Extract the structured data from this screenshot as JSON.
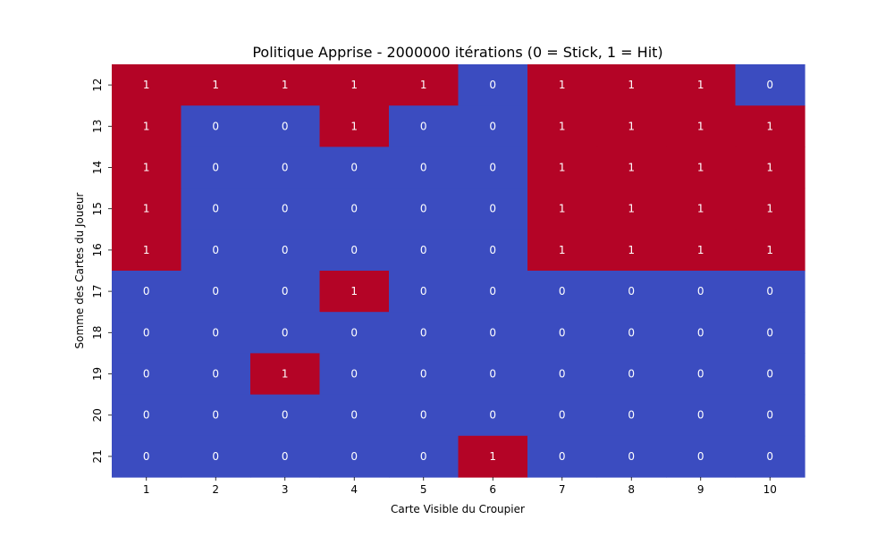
{
  "chart_data": {
    "type": "heatmap",
    "title": "Politique Apprise - 2000000 itérations (0 = Stick, 1 = Hit)",
    "xlabel": "Carte Visible du Croupier",
    "ylabel": "Somme des Cartes du Joueur",
    "x": [
      "1",
      "2",
      "3",
      "4",
      "5",
      "6",
      "7",
      "8",
      "9",
      "10"
    ],
    "y": [
      "12",
      "13",
      "14",
      "15",
      "16",
      "17",
      "18",
      "19",
      "20",
      "21"
    ],
    "values": [
      [
        1,
        1,
        1,
        1,
        1,
        0,
        1,
        1,
        1,
        0
      ],
      [
        1,
        0,
        0,
        1,
        0,
        0,
        1,
        1,
        1,
        1
      ],
      [
        1,
        0,
        0,
        0,
        0,
        0,
        1,
        1,
        1,
        1
      ],
      [
        1,
        0,
        0,
        0,
        0,
        0,
        1,
        1,
        1,
        1
      ],
      [
        1,
        0,
        0,
        0,
        0,
        0,
        1,
        1,
        1,
        1
      ],
      [
        0,
        0,
        0,
        1,
        0,
        0,
        0,
        0,
        0,
        0
      ],
      [
        0,
        0,
        0,
        0,
        0,
        0,
        0,
        0,
        0,
        0
      ],
      [
        0,
        0,
        1,
        0,
        0,
        0,
        0,
        0,
        0,
        0
      ],
      [
        0,
        0,
        0,
        0,
        0,
        0,
        0,
        0,
        0,
        0
      ],
      [
        0,
        0,
        0,
        0,
        0,
        1,
        0,
        0,
        0,
        0
      ]
    ],
    "annotations": "cell values",
    "colors": {
      "0": "#3b4cc0",
      "1": "#b40426"
    },
    "grid": false,
    "legend": "none"
  }
}
